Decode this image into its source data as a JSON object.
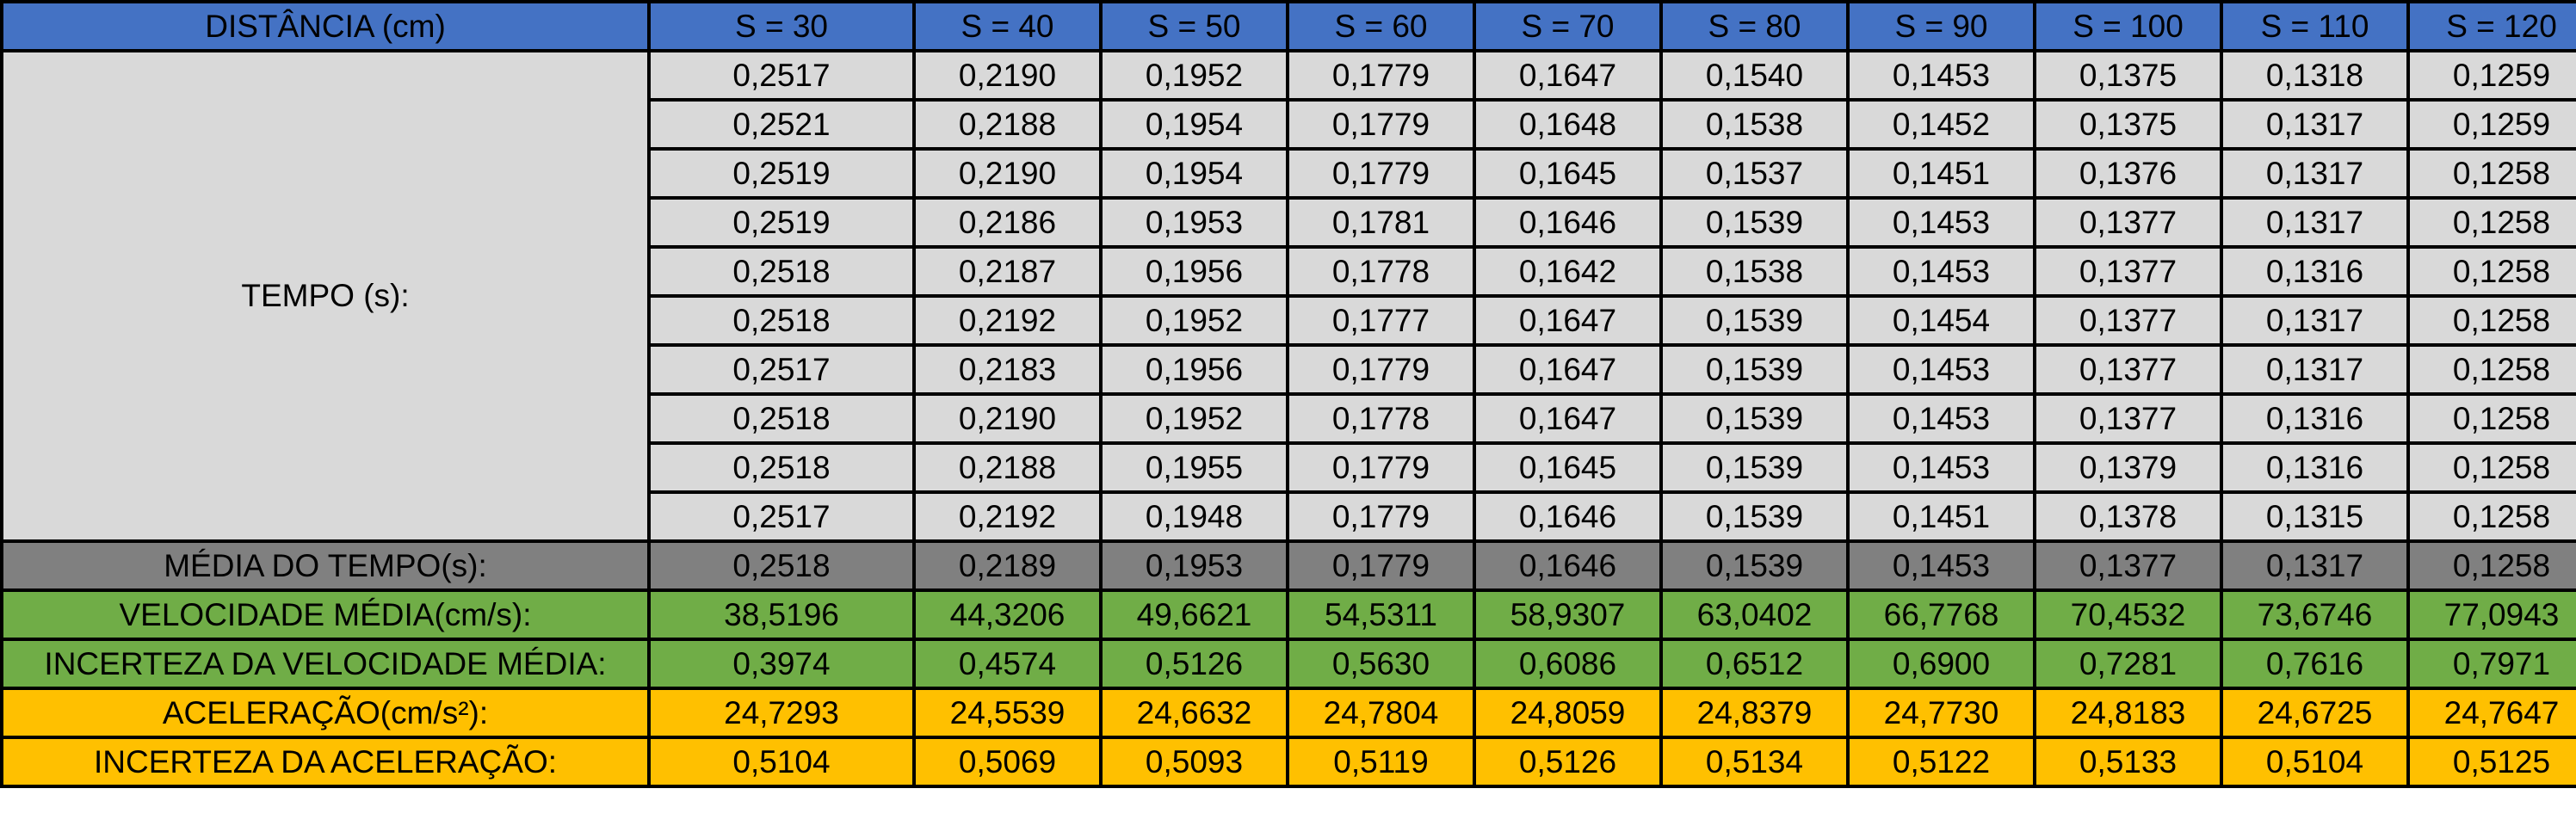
{
  "header": {
    "label": "DISTÂNCIA (cm)",
    "columns": [
      "S = 30",
      "S = 40",
      "S = 50",
      "S = 60",
      "S = 70",
      "S = 80",
      "S = 90",
      "S = 100",
      "S = 110",
      "S = 120"
    ]
  },
  "tempo": {
    "label": "TEMPO (s):",
    "rows": [
      [
        "0,2517",
        "0,2190",
        "0,1952",
        "0,1779",
        "0,1647",
        "0,1540",
        "0,1453",
        "0,1375",
        "0,1318",
        "0,1259"
      ],
      [
        "0,2521",
        "0,2188",
        "0,1954",
        "0,1779",
        "0,1648",
        "0,1538",
        "0,1452",
        "0,1375",
        "0,1317",
        "0,1259"
      ],
      [
        "0,2519",
        "0,2190",
        "0,1954",
        "0,1779",
        "0,1645",
        "0,1537",
        "0,1451",
        "0,1376",
        "0,1317",
        "0,1258"
      ],
      [
        "0,2519",
        "0,2186",
        "0,1953",
        "0,1781",
        "0,1646",
        "0,1539",
        "0,1453",
        "0,1377",
        "0,1317",
        "0,1258"
      ],
      [
        "0,2518",
        "0,2187",
        "0,1956",
        "0,1778",
        "0,1642",
        "0,1538",
        "0,1453",
        "0,1377",
        "0,1316",
        "0,1258"
      ],
      [
        "0,2518",
        "0,2192",
        "0,1952",
        "0,1777",
        "0,1647",
        "0,1539",
        "0,1454",
        "0,1377",
        "0,1317",
        "0,1258"
      ],
      [
        "0,2517",
        "0,2183",
        "0,1956",
        "0,1779",
        "0,1647",
        "0,1539",
        "0,1453",
        "0,1377",
        "0,1317",
        "0,1258"
      ],
      [
        "0,2518",
        "0,2190",
        "0,1952",
        "0,1778",
        "0,1647",
        "0,1539",
        "0,1453",
        "0,1377",
        "0,1316",
        "0,1258"
      ],
      [
        "0,2518",
        "0,2188",
        "0,1955",
        "0,1779",
        "0,1645",
        "0,1539",
        "0,1453",
        "0,1379",
        "0,1316",
        "0,1258"
      ],
      [
        "0,2517",
        "0,2192",
        "0,1948",
        "0,1779",
        "0,1646",
        "0,1539",
        "0,1451",
        "0,1378",
        "0,1315",
        "0,1258"
      ]
    ]
  },
  "summary": [
    {
      "label": "MÉDIA DO TEMPO(s):",
      "style": "mean",
      "values": [
        "0,2518",
        "0,2189",
        "0,1953",
        "0,1779",
        "0,1646",
        "0,1539",
        "0,1453",
        "0,1377",
        "0,1317",
        "0,1258"
      ]
    },
    {
      "label": "VELOCIDADE MÉDIA(cm/s):",
      "style": "green",
      "values": [
        "38,5196",
        "44,3206",
        "49,6621",
        "54,5311",
        "58,9307",
        "63,0402",
        "66,7768",
        "70,4532",
        "73,6746",
        "77,0943"
      ]
    },
    {
      "label": "INCERTEZA DA VELOCIDADE MÉDIA:",
      "style": "green",
      "values": [
        "0,3974",
        "0,4574",
        "0,5126",
        "0,5630",
        "0,6086",
        "0,6512",
        "0,6900",
        "0,7281",
        "0,7616",
        "0,7971"
      ]
    },
    {
      "label": "ACELERAÇÃO(cm/s²):",
      "style": "orange",
      "values": [
        "24,7293",
        "24,5539",
        "24,6632",
        "24,7804",
        "24,8059",
        "24,8379",
        "24,7730",
        "24,8183",
        "24,6725",
        "24,7647"
      ]
    },
    {
      "label": "INCERTEZA DA ACELERAÇÃO:",
      "style": "orange",
      "values": [
        "0,5104",
        "0,5069",
        "0,5093",
        "0,5119",
        "0,5126",
        "0,5134",
        "0,5122",
        "0,5133",
        "0,5104",
        "0,5125"
      ]
    }
  ],
  "colors": {
    "header": "#4472c4",
    "time": "#d9d9d9",
    "mean": "#808080",
    "green": "#70ad47",
    "orange": "#ffc000"
  }
}
